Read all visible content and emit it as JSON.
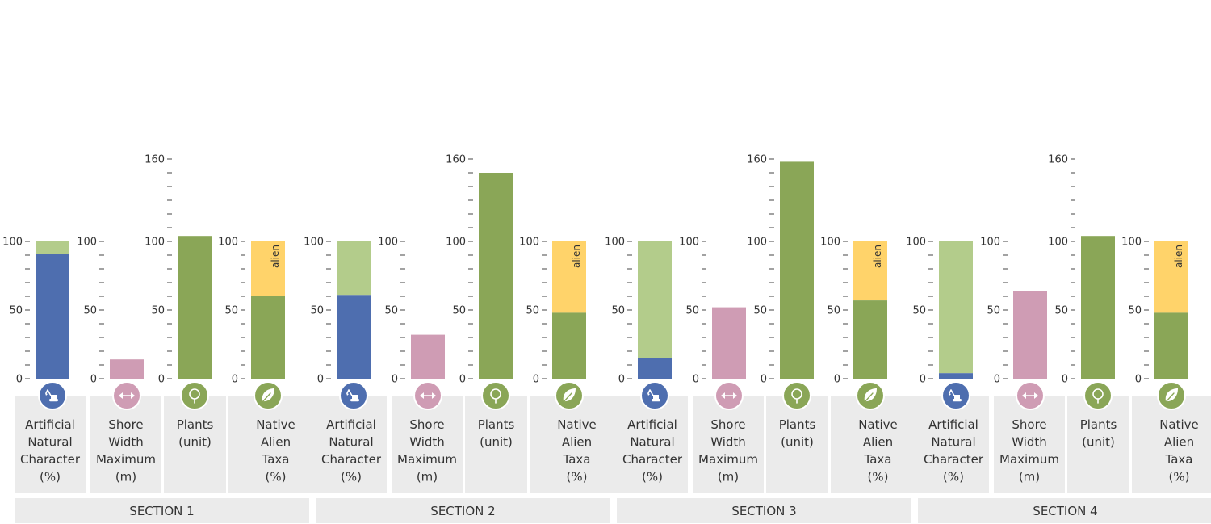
{
  "chart_data": {
    "type": "bar",
    "colors": {
      "artificial": "#4e6eaf",
      "natural": "#b3cc8b",
      "shore": "#cf9cb4",
      "plants": "#8aa657",
      "native": "#8aa657",
      "alien": "#ffd36a",
      "panel": "#ebebeb"
    },
    "icons": {
      "artificial": "excavator-icon",
      "shore": "double-arrow-icon",
      "plants": "tree-icon",
      "native_alien": "leaf-icon"
    },
    "metrics": [
      {
        "key": "artificial",
        "label": [
          "Artificial",
          "Natural",
          "Character",
          "(%)"
        ],
        "ticks": [
          0,
          50,
          100
        ],
        "ymax": 100,
        "icon": "excavator-icon",
        "icon_color": "#4e6eaf"
      },
      {
        "key": "shore",
        "label": [
          "Shore",
          "Width",
          "Maximum",
          "(m)"
        ],
        "ticks": [
          0,
          50,
          100
        ],
        "ymax": 100,
        "icon": "double-arrow-icon",
        "icon_color": "#cf9cb4"
      },
      {
        "key": "plants",
        "label": [
          "Plants",
          "(unit)"
        ],
        "ticks": [
          0,
          50,
          100,
          160
        ],
        "ymax": 160,
        "icon": "tree-icon",
        "icon_color": "#8aa657"
      },
      {
        "key": "native_alien",
        "label": [
          "Native",
          "Alien",
          "Taxa",
          "(%)"
        ],
        "ticks": [
          0,
          50,
          100
        ],
        "ymax": 100,
        "icon": "leaf-icon",
        "icon_color": "#8aa657",
        "bar_label": "alien"
      }
    ],
    "sections": [
      {
        "name": "SECTION 1",
        "artificial": 91,
        "natural": 9,
        "shore_width": 14,
        "plants": 104,
        "native": 60,
        "alien": 40
      },
      {
        "name": "SECTION 2",
        "artificial": 61,
        "natural": 39,
        "shore_width": 32,
        "plants": 150,
        "native": 48,
        "alien": 52
      },
      {
        "name": "SECTION 3",
        "artificial": 15,
        "natural": 85,
        "shore_width": 52,
        "plants": 158,
        "native": 57,
        "alien": 43
      },
      {
        "name": "SECTION 4",
        "artificial": 4,
        "natural": 96,
        "shore_width": 64,
        "plants": 104,
        "native": 48,
        "alien": 52
      }
    ]
  }
}
